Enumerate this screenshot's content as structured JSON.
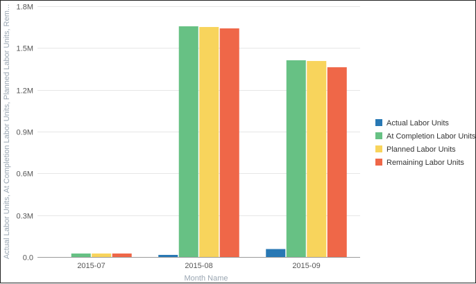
{
  "chart_data": {
    "type": "bar",
    "title": "",
    "xlabel": "Month Name",
    "ylabel": "Actual Labor Units, At Completion Labor Units, Planned Labor Units, Rem...",
    "categories": [
      "2015-07",
      "2015-08",
      "2015-09"
    ],
    "ylim": [
      0,
      1800000
    ],
    "yticks": [
      0,
      300000,
      600000,
      900000,
      1200000,
      1500000,
      1800000
    ],
    "ytick_labels": [
      "0.0",
      "0.3M",
      "0.6M",
      "0.9M",
      "1.2M",
      "1.5M",
      "1.8M"
    ],
    "grid": true,
    "legend_position": "right",
    "series": [
      {
        "name": "Actual Labor Units",
        "color": "#2878b4",
        "values": [
          0,
          15000,
          57000
        ]
      },
      {
        "name": "At Completion Labor Units",
        "color": "#67c184",
        "values": [
          25000,
          1656000,
          1412000
        ]
      },
      {
        "name": "Planned Labor Units",
        "color": "#f8d45c",
        "values": [
          25000,
          1651000,
          1407000
        ]
      },
      {
        "name": "Remaining Labor Units",
        "color": "#ef6748",
        "values": [
          25000,
          1641000,
          1362000
        ]
      }
    ]
  }
}
